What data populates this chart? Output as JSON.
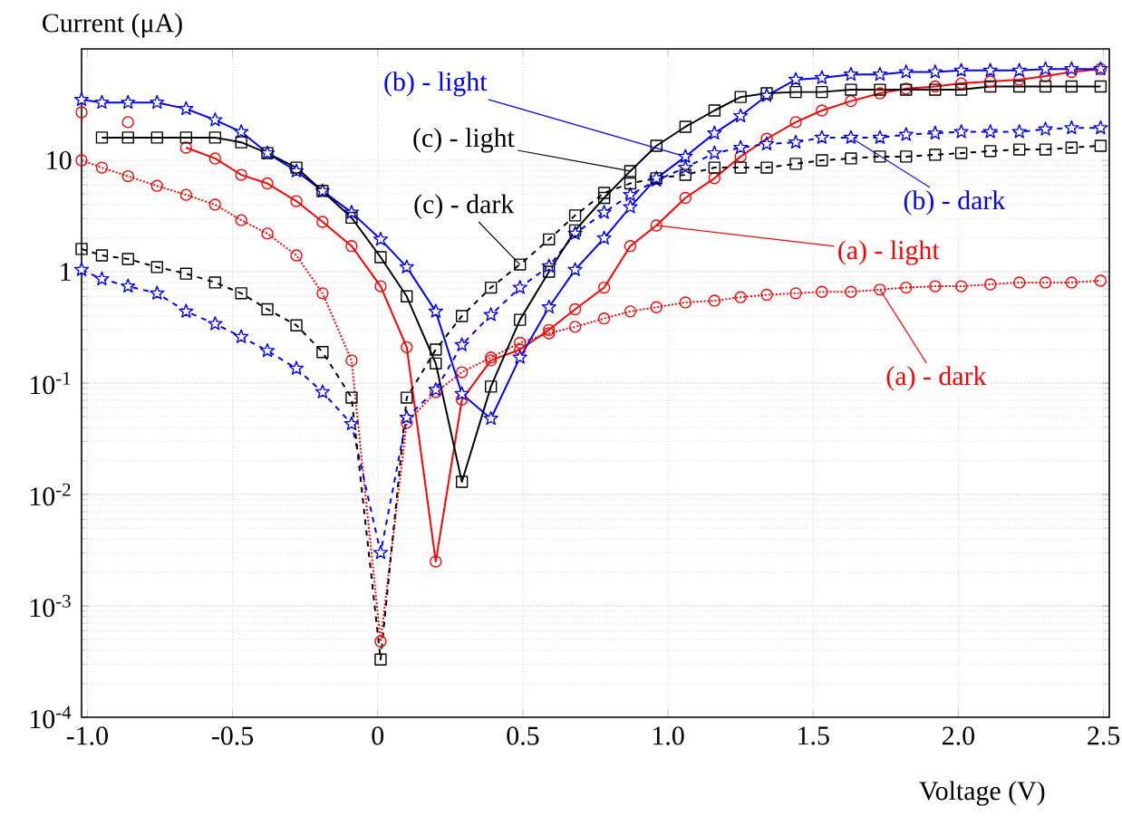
{
  "chart_data": {
    "type": "line",
    "xlabel": "Voltage (V)",
    "ylabel": "Current (μA)",
    "log": "y",
    "grid": true,
    "xlim": [
      -1.02,
      2.52
    ],
    "ylim": [
      0.0001,
      100
    ],
    "xticks": [
      {
        "value": -1,
        "label": "-1.0"
      },
      {
        "value": -0.5,
        "label": "-0.5"
      },
      0,
      0.5,
      {
        "value": 1,
        "label": "1.0"
      },
      1.5,
      {
        "value": 2,
        "label": "2.0"
      },
      2.5
    ],
    "yticks": [
      {
        "value": 0.0001,
        "label": "10$^{-4}$"
      },
      {
        "value": 0.001,
        "label": "10$^{-3}$"
      },
      {
        "value": 0.01,
        "label": "10$^{-2}$"
      },
      {
        "value": 0.1,
        "label": "10$^{-1}$"
      },
      1,
      10
    ],
    "x": [
      -1.02,
      -0.95,
      -0.86,
      -0.76,
      -0.66,
      -0.56,
      -0.47,
      -0.38,
      -0.28,
      -0.19,
      -0.09,
      0.01,
      0.1,
      0.2,
      0.29,
      0.39,
      0.49,
      0.59,
      0.68,
      0.78,
      0.87,
      0.96,
      1.06,
      1.16,
      1.25,
      1.34,
      1.44,
      1.53,
      1.63,
      1.73,
      1.82,
      1.92,
      2.01,
      2.11,
      2.21,
      2.3,
      2.39,
      2.49
    ],
    "series": [
      {
        "color": "#ff0000",
        "marker": "circle",
        "line_style": "dotted",
        "values": [
          10,
          8.6,
          7.2,
          5.9,
          4.9,
          4.0,
          2.9,
          2.2,
          1.4,
          0.64,
          0.16,
          0.00048,
          0.044,
          0.083,
          0.125,
          0.17,
          0.23,
          0.28,
          0.32,
          0.38,
          0.44,
          0.48,
          0.53,
          0.55,
          0.59,
          0.62,
          0.64,
          0.66,
          0.66,
          0.69,
          0.72,
          0.74,
          0.74,
          0.77,
          0.8,
          0.8,
          0.8,
          0.83
        ]
      },
      {
        "color": "#ff0000",
        "marker": "circle",
        "line_style": "solid",
        "values": [
          27,
          null,
          22,
          null,
          13,
          10.4,
          7.4,
          6.2,
          4.3,
          2.8,
          1.7,
          0.74,
          0.21,
          0.0025,
          0.071,
          0.16,
          0.2,
          0.3,
          0.46,
          0.72,
          1.7,
          2.6,
          4.6,
          6.9,
          10.8,
          15.6,
          22,
          28,
          34,
          40,
          44,
          46,
          49,
          51,
          53,
          57,
          62,
          66
        ]
      },
      {
        "color": "#0000ff",
        "marker": "star",
        "line_style": "dashed",
        "values": [
          1.04,
          0.86,
          0.74,
          0.64,
          0.44,
          0.34,
          0.26,
          0.195,
          0.135,
          0.083,
          0.043,
          0.003,
          0.049,
          0.087,
          0.22,
          0.41,
          0.72,
          1.12,
          2.2,
          3.4,
          4.9,
          6.6,
          8.6,
          11.6,
          13,
          14,
          14.5,
          16,
          16,
          16,
          17,
          17.5,
          18,
          18,
          18,
          19,
          19.5,
          19.5
        ]
      },
      {
        "color": "#0000ff",
        "marker": "star",
        "line_style": "solid",
        "values": [
          35,
          33,
          33,
          33,
          29,
          23,
          18,
          11.6,
          8,
          5.3,
          3.4,
          1.95,
          1.1,
          0.44,
          0.08,
          0.048,
          0.17,
          0.48,
          1.04,
          2.0,
          3.8,
          6.9,
          10.8,
          17.5,
          25,
          38,
          53,
          55,
          59,
          59,
          62,
          62,
          64,
          64,
          64,
          66,
          66,
          66
        ]
      },
      {
        "color": "#000000",
        "marker": "square",
        "line_style": "dashed",
        "values": [
          1.6,
          1.4,
          1.3,
          1.1,
          0.96,
          0.8,
          0.64,
          0.46,
          0.33,
          0.19,
          0.074,
          0.00033,
          0.074,
          0.2,
          0.4,
          0.72,
          1.16,
          1.95,
          3.2,
          5.1,
          6.2,
          6.9,
          7.4,
          8.6,
          8.6,
          8.6,
          9.3,
          10,
          10.4,
          10.8,
          10.8,
          11.2,
          11.6,
          12.1,
          12.5,
          12.5,
          13,
          13.5
        ]
      },
      {
        "color": "#000000",
        "marker": "square",
        "line_style": "solid",
        "values": [
          null,
          16,
          16,
          16,
          16,
          16,
          14.5,
          11.6,
          8.6,
          5.3,
          3.05,
          1.35,
          0.6,
          0.15,
          0.013,
          0.093,
          0.37,
          1.0,
          2.35,
          4.6,
          8.0,
          13.5,
          20,
          28,
          37,
          40,
          41,
          41,
          43,
          43,
          43,
          43,
          43,
          46,
          46,
          46,
          46,
          46
        ]
      }
    ],
    "annotations": [
      {
        "text": "(a) - dark",
        "x": 1.73,
        "y": 0.69
      },
      {
        "text": "(a) - light",
        "x": 0.96,
        "y": 2.6
      },
      {
        "text": "(b) - dark",
        "x": 1.63,
        "y": 16
      },
      {
        "text": "(b) - light",
        "x": 1.06,
        "y": 10.8
      },
      {
        "text": "(c) - dark",
        "x": 0.49,
        "y": 1.16
      },
      {
        "text": "(c) - light",
        "x": 0.87,
        "y": 8.0
      }
    ]
  }
}
